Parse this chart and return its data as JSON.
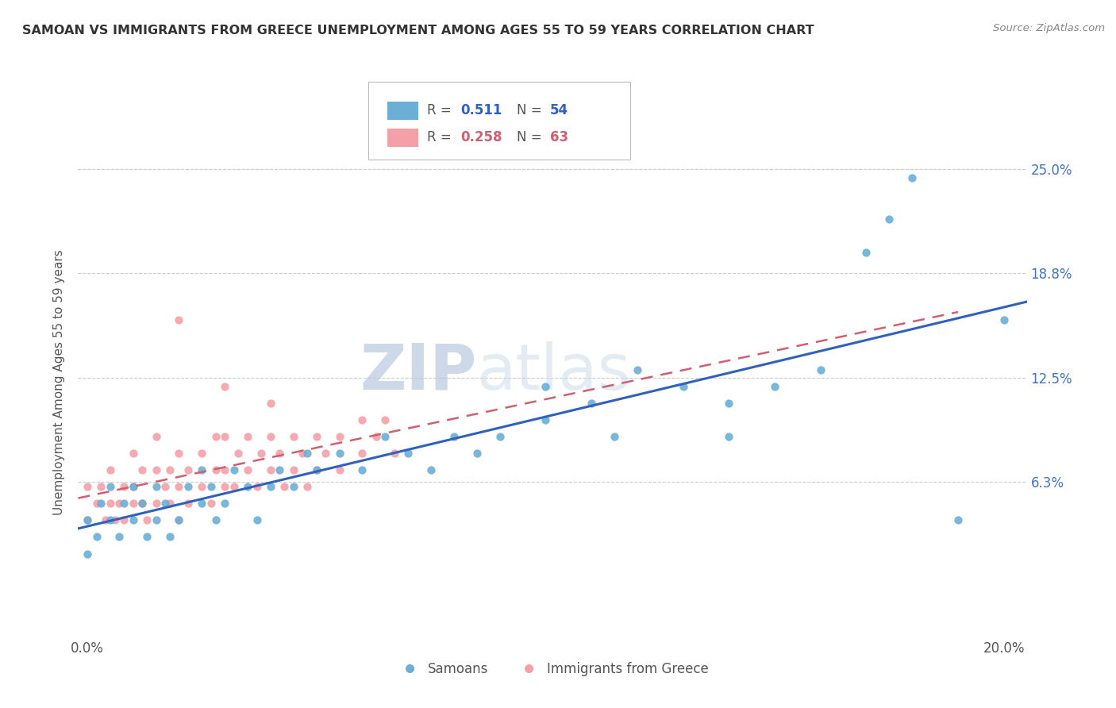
{
  "title": "SAMOAN VS IMMIGRANTS FROM GREECE UNEMPLOYMENT AMONG AGES 55 TO 59 YEARS CORRELATION CHART",
  "source": "Source: ZipAtlas.com",
  "ylabel": "Unemployment Among Ages 55 to 59 years",
  "xlim": [
    -0.002,
    0.205
  ],
  "ylim": [
    -0.03,
    0.275
  ],
  "xticks": [
    0.0,
    0.05,
    0.1,
    0.15,
    0.2
  ],
  "xticklabels": [
    "0.0%",
    "",
    "",
    "",
    "20.0%"
  ],
  "ytick_positions": [
    0.063,
    0.125,
    0.188,
    0.25
  ],
  "ytick_labels": [
    "6.3%",
    "12.5%",
    "18.8%",
    "25.0%"
  ],
  "legend_labels": [
    "Samoans",
    "Immigrants from Greece"
  ],
  "R_blue": 0.511,
  "N_blue": 54,
  "R_pink": 0.258,
  "N_pink": 63,
  "color_blue": "#6BAED6",
  "color_pink": "#F4A0A8",
  "color_blue_trend": "#3060C0",
  "color_pink_trend": "#D06070",
  "watermark_zip": "ZIP",
  "watermark_atlas": "atlas",
  "blue_scatter_x": [
    0.0,
    0.0,
    0.002,
    0.003,
    0.005,
    0.005,
    0.007,
    0.008,
    0.01,
    0.01,
    0.012,
    0.013,
    0.015,
    0.015,
    0.017,
    0.018,
    0.02,
    0.022,
    0.025,
    0.025,
    0.027,
    0.028,
    0.03,
    0.032,
    0.035,
    0.037,
    0.04,
    0.042,
    0.045,
    0.048,
    0.05,
    0.055,
    0.06,
    0.065,
    0.07,
    0.075,
    0.08,
    0.085,
    0.09,
    0.1,
    0.1,
    0.11,
    0.115,
    0.12,
    0.13,
    0.14,
    0.14,
    0.15,
    0.16,
    0.17,
    0.175,
    0.18,
    0.19,
    0.2
  ],
  "blue_scatter_y": [
    0.02,
    0.04,
    0.03,
    0.05,
    0.04,
    0.06,
    0.03,
    0.05,
    0.04,
    0.06,
    0.05,
    0.03,
    0.04,
    0.06,
    0.05,
    0.03,
    0.04,
    0.06,
    0.05,
    0.07,
    0.06,
    0.04,
    0.05,
    0.07,
    0.06,
    0.04,
    0.06,
    0.07,
    0.06,
    0.08,
    0.07,
    0.08,
    0.07,
    0.09,
    0.08,
    0.07,
    0.09,
    0.08,
    0.09,
    0.12,
    0.1,
    0.11,
    0.09,
    0.13,
    0.12,
    0.11,
    0.09,
    0.12,
    0.13,
    0.2,
    0.22,
    0.245,
    0.04,
    0.16
  ],
  "pink_scatter_x": [
    0.0,
    0.0,
    0.002,
    0.003,
    0.004,
    0.005,
    0.005,
    0.006,
    0.007,
    0.008,
    0.008,
    0.01,
    0.01,
    0.01,
    0.012,
    0.012,
    0.013,
    0.015,
    0.015,
    0.015,
    0.017,
    0.018,
    0.018,
    0.02,
    0.02,
    0.02,
    0.022,
    0.022,
    0.025,
    0.025,
    0.027,
    0.028,
    0.028,
    0.03,
    0.03,
    0.03,
    0.032,
    0.033,
    0.035,
    0.035,
    0.037,
    0.038,
    0.04,
    0.04,
    0.042,
    0.043,
    0.045,
    0.045,
    0.047,
    0.048,
    0.05,
    0.05,
    0.052,
    0.055,
    0.055,
    0.06,
    0.06,
    0.063,
    0.065,
    0.067,
    0.02,
    0.03,
    0.04
  ],
  "pink_scatter_y": [
    0.04,
    0.06,
    0.05,
    0.06,
    0.04,
    0.05,
    0.07,
    0.04,
    0.05,
    0.04,
    0.06,
    0.05,
    0.06,
    0.08,
    0.05,
    0.07,
    0.04,
    0.05,
    0.07,
    0.09,
    0.06,
    0.05,
    0.07,
    0.04,
    0.06,
    0.08,
    0.05,
    0.07,
    0.06,
    0.08,
    0.05,
    0.07,
    0.09,
    0.06,
    0.07,
    0.09,
    0.06,
    0.08,
    0.07,
    0.09,
    0.06,
    0.08,
    0.07,
    0.09,
    0.08,
    0.06,
    0.07,
    0.09,
    0.08,
    0.06,
    0.07,
    0.09,
    0.08,
    0.09,
    0.07,
    0.08,
    0.1,
    0.09,
    0.1,
    0.08,
    0.16,
    0.12,
    0.11
  ]
}
